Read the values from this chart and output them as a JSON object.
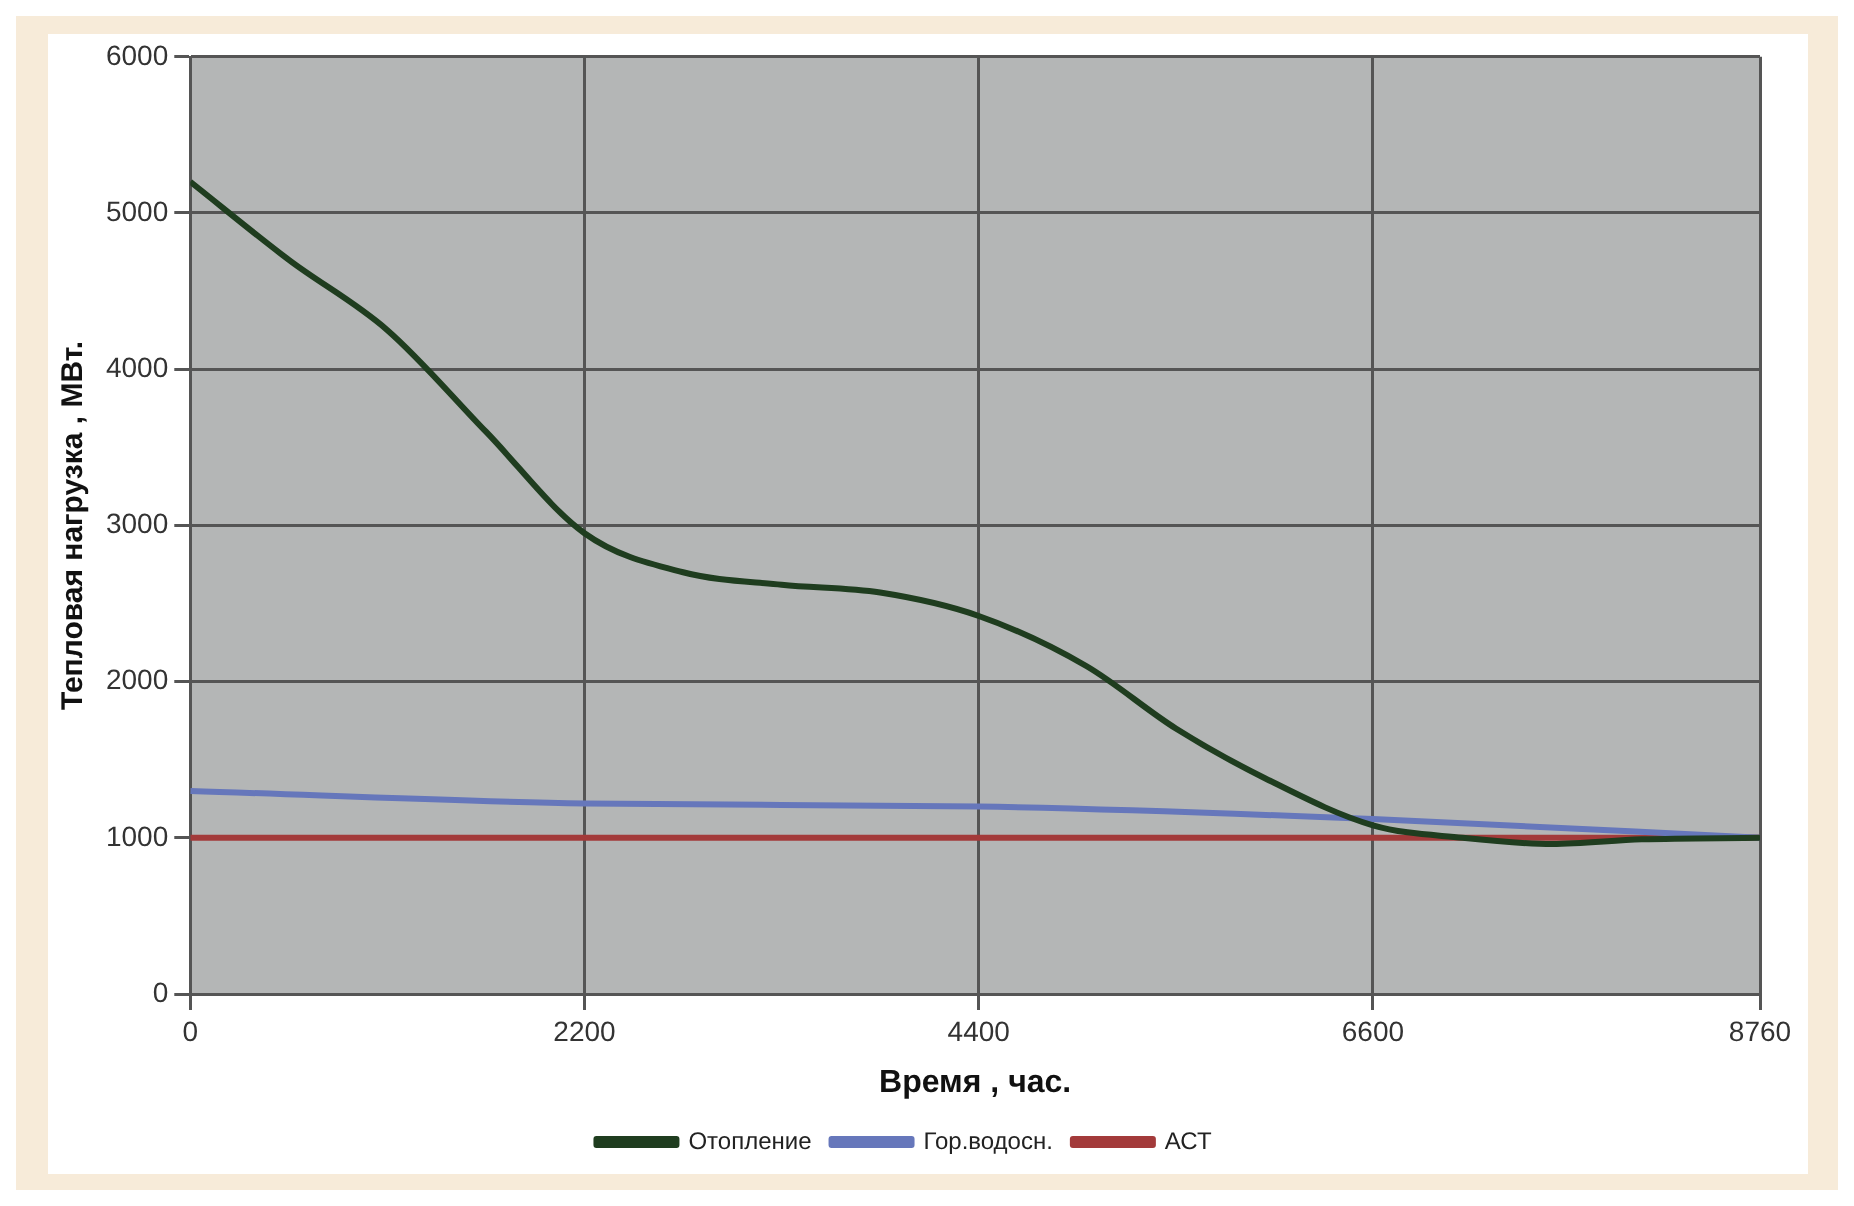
{
  "chart_data": {
    "type": "line",
    "xlabel": "Время , час.",
    "ylabel": "Тепловая нагрузка , МВт.",
    "xlim": [
      0,
      8760
    ],
    "xticks": [
      0,
      2200,
      4400,
      6600,
      8760
    ],
    "ylim": [
      0,
      6000
    ],
    "yticks": [
      0,
      1000,
      2000,
      3000,
      4000,
      5000,
      6000
    ],
    "grid": true,
    "legend": "bottom",
    "marker": "none",
    "line_style": "solid",
    "series": [
      {
        "name": "Отопление",
        "color": "#1f3d1f",
        "x": [
          0,
          550,
          1100,
          1650,
          2200,
          2750,
          3300,
          3850,
          4400,
          5000,
          5500,
          6000,
          6600,
          7100,
          7600,
          8100,
          8760
        ],
        "values": [
          5200,
          4700,
          4250,
          3600,
          2950,
          2700,
          2620,
          2570,
          2420,
          2100,
          1700,
          1380,
          1080,
          1000,
          960,
          990,
          1000
        ]
      },
      {
        "name": "Гор.водосн.",
        "color": "#6677bb",
        "x": [
          0,
          2200,
          4400,
          6600,
          8760
        ],
        "values": [
          1300,
          1220,
          1200,
          1120,
          1000
        ]
      },
      {
        "name": "АСТ",
        "color": "#a33a3a",
        "x": [
          0,
          8760
        ],
        "values": [
          1000,
          1000
        ]
      }
    ]
  }
}
